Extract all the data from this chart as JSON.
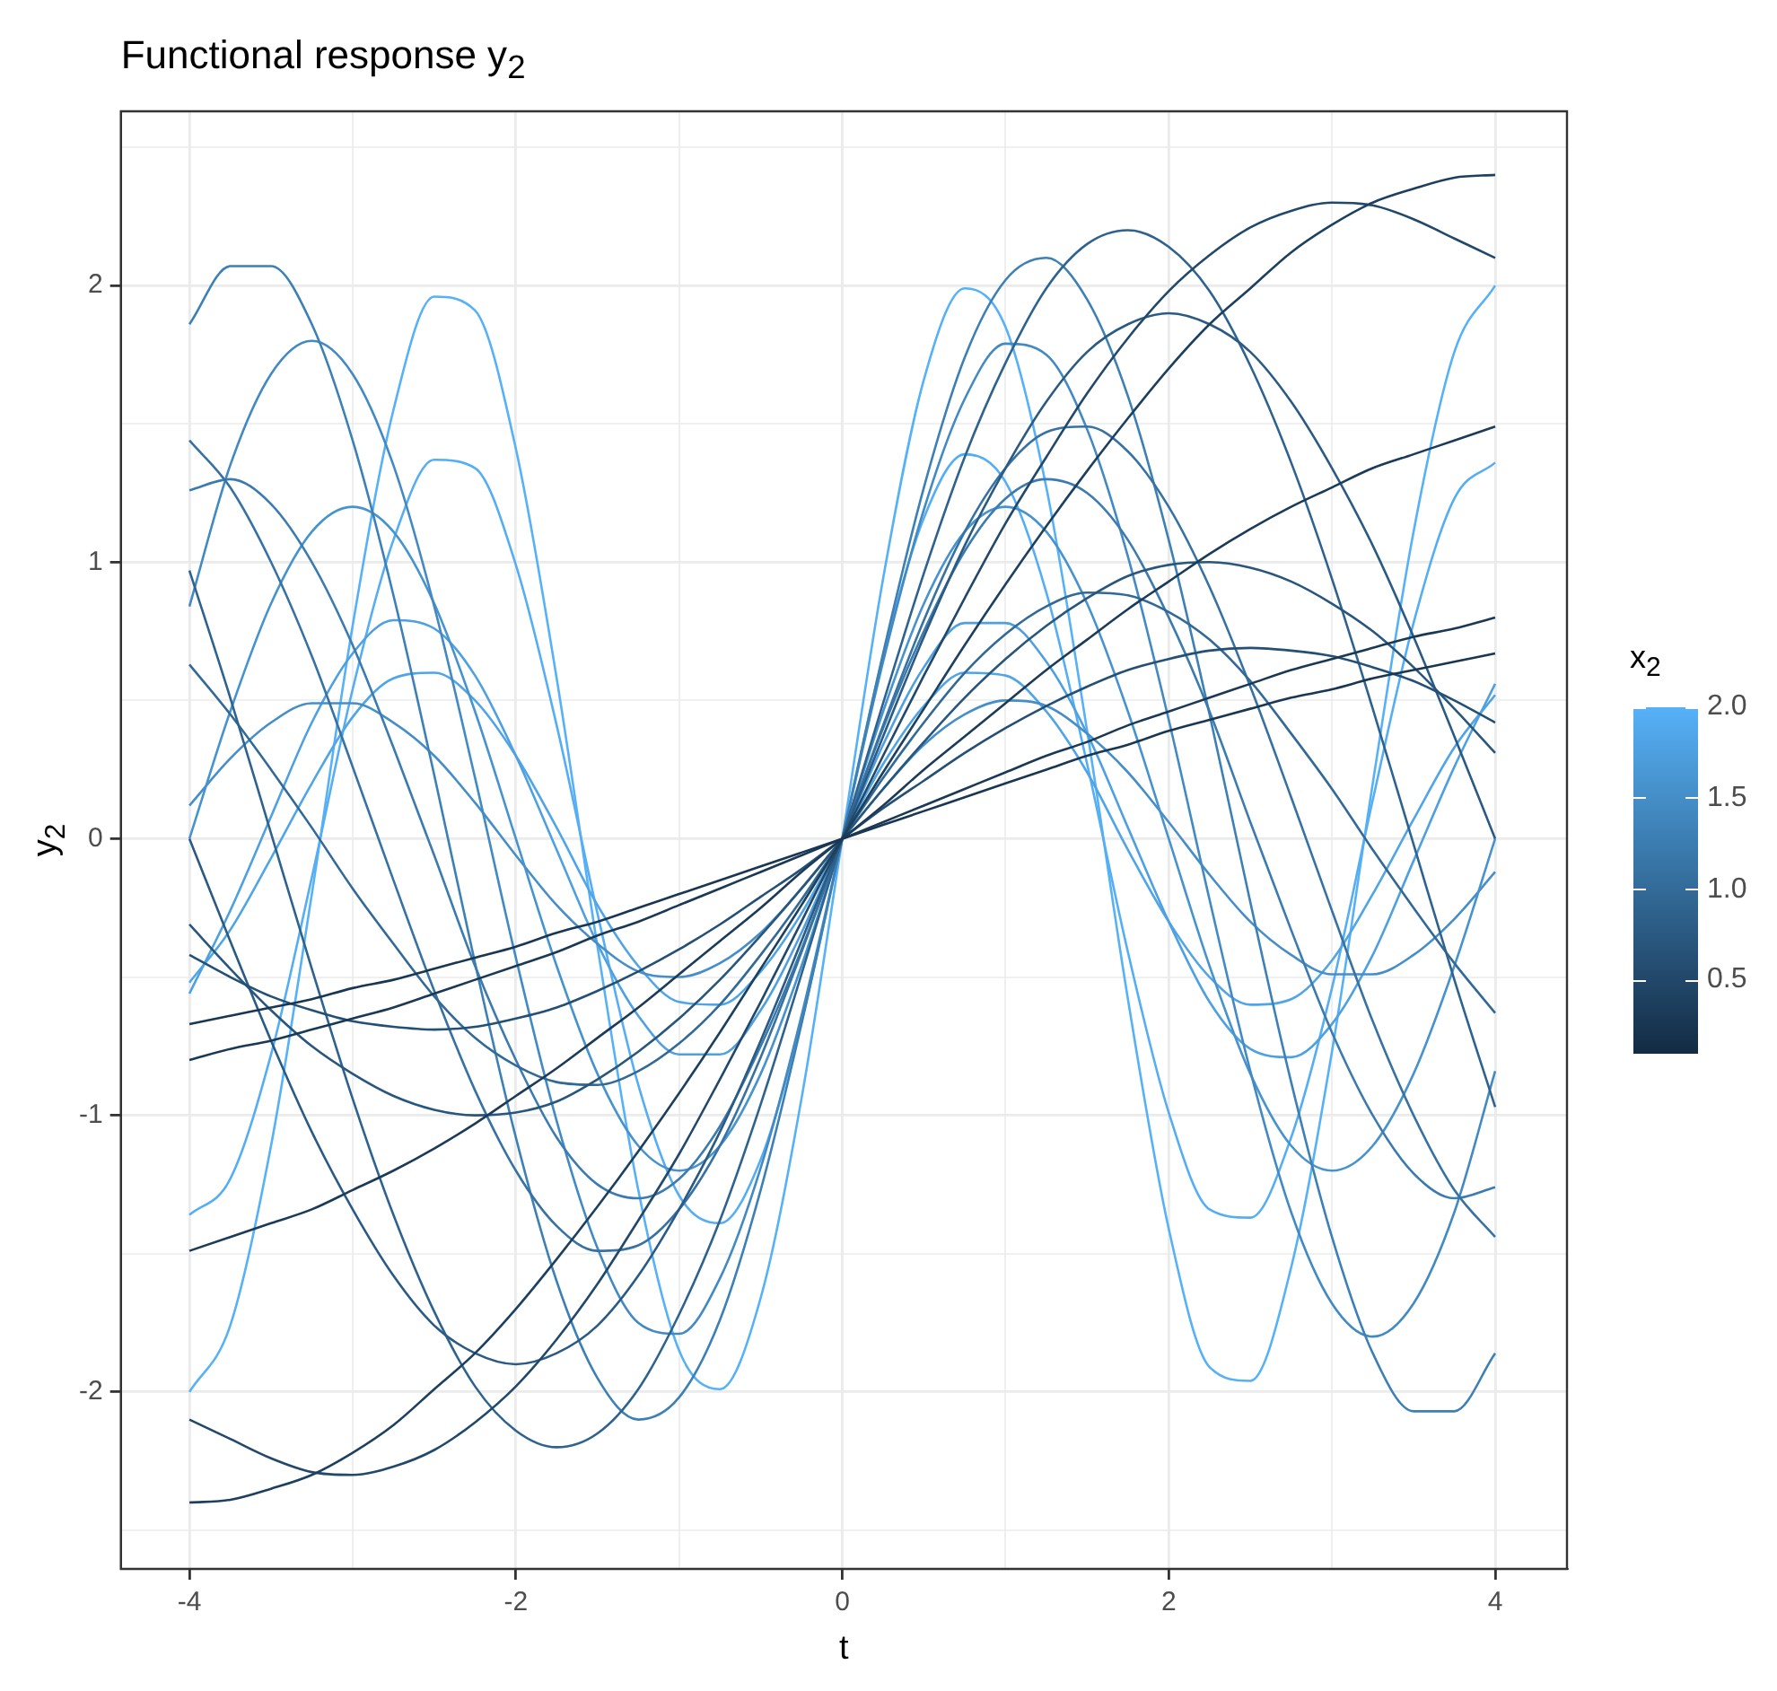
{
  "chart_data": {
    "type": "line",
    "title": "Functional response y$_{2}$",
    "xlabel": "t",
    "ylabel": "y$_{2}$",
    "clabel": "x$_{2}$",
    "clim": [
      0.1,
      2.0
    ],
    "cticks": [
      {
        "value": 0.5,
        "label": "0.5"
      },
      {
        "value": 1,
        "label": "1.0"
      },
      {
        "value": 1.5,
        "label": "1.5"
      },
      {
        "value": 2,
        "label": "2.0"
      }
    ],
    "xlim": [
      -4.42,
      4.44
    ],
    "xticks": [
      -4,
      {
        "value": -3,
        "label": null
      },
      -2,
      {
        "value": -1,
        "label": null
      },
      0,
      {
        "value": 1,
        "label": null
      },
      2,
      {
        "value": 3,
        "label": null
      },
      4
    ],
    "ylim": [
      -2.64,
      2.63
    ],
    "yticks": [
      {
        "value": -2.5,
        "label": null
      },
      -2,
      {
        "value": -1.5,
        "label": null
      },
      -1,
      {
        "value": -0.5,
        "label": null
      },
      0,
      {
        "value": 0.5,
        "label": null
      },
      1,
      {
        "value": 1.5,
        "label": null
      },
      2,
      {
        "value": 2.5,
        "label": null
      }
    ],
    "grid": true,
    "legend": false,
    "x": [
      -4,
      -3.75,
      -3.5,
      -3.25,
      -3,
      -2.75,
      -2.5,
      -2.25,
      -2,
      -1.75,
      -1.5,
      -1.25,
      -1,
      -0.75,
      -0.5,
      -0.25,
      0,
      0.25,
      0.5,
      0.75,
      1,
      1.25,
      1.5,
      1.75,
      2,
      2.25,
      2.5,
      2.75,
      3,
      3.25,
      3.5,
      3.75,
      4
    ],
    "series": [
      {
        "color": "#193753",
        "values": [
          -0.67,
          -0.64,
          -0.61,
          -0.58,
          -0.54,
          -0.51,
          -0.47,
          -0.43,
          -0.39,
          -0.34,
          -0.3,
          -0.25,
          -0.2,
          -0.15,
          -0.1,
          -0.05,
          0,
          0.05,
          0.1,
          0.15,
          0.2,
          0.25,
          0.3,
          0.34,
          0.39,
          0.43,
          0.47,
          0.51,
          0.54,
          0.58,
          0.61,
          0.64,
          0.67
        ]
      },
      {
        "color": "#1a3955",
        "values": [
          -0.8,
          -0.76,
          -0.73,
          -0.69,
          -0.65,
          -0.61,
          -0.56,
          -0.51,
          -0.46,
          -0.41,
          -0.35,
          -0.3,
          -0.24,
          -0.18,
          -0.12,
          -0.06,
          0,
          0.06,
          0.12,
          0.18,
          0.24,
          0.3,
          0.35,
          0.41,
          0.46,
          0.51,
          0.56,
          0.61,
          0.65,
          0.69,
          0.73,
          0.76,
          0.8
        ]
      },
      {
        "color": "#1b3b59",
        "values": [
          -1.49,
          -1.44,
          -1.39,
          -1.34,
          -1.27,
          -1.2,
          -1.12,
          -1.03,
          -0.93,
          -0.83,
          -0.72,
          -0.61,
          -0.49,
          -0.37,
          -0.25,
          -0.12,
          0,
          0.12,
          0.25,
          0.37,
          0.49,
          0.61,
          0.72,
          0.83,
          0.93,
          1.03,
          1.12,
          1.2,
          1.27,
          1.34,
          1.39,
          1.44,
          1.49
        ]
      },
      {
        "color": "#1d405f",
        "values": [
          -2.4,
          -2.39,
          -2.35,
          -2.3,
          -2.22,
          -2.12,
          -1.99,
          -1.86,
          -1.7,
          -1.52,
          -1.33,
          -1.13,
          -0.92,
          -0.7,
          -0.47,
          -0.24,
          0,
          0.24,
          0.47,
          0.7,
          0.92,
          1.13,
          1.33,
          1.52,
          1.7,
          1.86,
          1.99,
          2.12,
          2.22,
          2.3,
          2.35,
          2.39,
          2.4
        ]
      },
      {
        "color": "#22486a",
        "values": [
          -2.1,
          -2.17,
          -2.24,
          -2.29,
          -2.3,
          -2.27,
          -2.21,
          -2.11,
          -1.98,
          -1.81,
          -1.61,
          -1.38,
          -1.14,
          -0.87,
          -0.59,
          -0.3,
          0,
          0.3,
          0.59,
          0.87,
          1.14,
          1.38,
          1.61,
          1.81,
          1.98,
          2.11,
          2.21,
          2.27,
          2.3,
          2.29,
          2.24,
          2.17,
          2.1
        ]
      },
      {
        "color": "#255075",
        "values": [
          -0.42,
          -0.5,
          -0.57,
          -0.62,
          -0.66,
          -0.68,
          -0.69,
          -0.68,
          -0.65,
          -0.61,
          -0.55,
          -0.48,
          -0.4,
          -0.31,
          -0.21,
          -0.11,
          0,
          0.11,
          0.21,
          0.31,
          0.4,
          0.48,
          0.55,
          0.61,
          0.65,
          0.68,
          0.69,
          0.68,
          0.66,
          0.62,
          0.57,
          0.5,
          0.42
        ]
      },
      {
        "color": "#28567c",
        "values": [
          -0.31,
          -0.47,
          -0.62,
          -0.75,
          -0.85,
          -0.93,
          -0.98,
          -1.0,
          -0.99,
          -0.95,
          -0.87,
          -0.77,
          -0.65,
          -0.51,
          -0.35,
          -0.18,
          0,
          0.18,
          0.35,
          0.51,
          0.65,
          0.77,
          0.87,
          0.95,
          0.99,
          1.0,
          0.98,
          0.93,
          0.85,
          0.75,
          0.62,
          0.47,
          0.31
        ]
      },
      {
        "color": "#2b5b84",
        "values": [
          0,
          -0.37,
          -0.73,
          -1.06,
          -1.34,
          -1.58,
          -1.76,
          -1.86,
          -1.9,
          -1.86,
          -1.76,
          -1.58,
          -1.34,
          -1.06,
          -0.73,
          -0.37,
          0,
          0.37,
          0.73,
          1.06,
          1.34,
          1.58,
          1.76,
          1.86,
          1.9,
          1.86,
          1.76,
          1.58,
          1.34,
          1.06,
          0.73,
          0.37,
          0
        ]
      },
      {
        "color": "#2f638f",
        "values": [
          0.97,
          0.51,
          0.02,
          -0.47,
          -0.94,
          -1.36,
          -1.71,
          -1.98,
          -2.14,
          -2.2,
          -2.15,
          -1.99,
          -1.72,
          -1.38,
          -0.96,
          -0.49,
          0,
          0.49,
          0.96,
          1.38,
          1.72,
          1.99,
          2.15,
          2.2,
          2.14,
          1.98,
          1.71,
          1.36,
          0.94,
          0.47,
          -0.02,
          -0.51,
          -0.97
        ]
      },
      {
        "color": "#326996",
        "values": [
          0.63,
          0.45,
          0.25,
          0.04,
          -0.18,
          -0.38,
          -0.57,
          -0.72,
          -0.82,
          -0.88,
          -0.89,
          -0.84,
          -0.74,
          -0.6,
          -0.42,
          -0.22,
          0,
          0.22,
          0.42,
          0.6,
          0.74,
          0.84,
          0.89,
          0.88,
          0.82,
          0.72,
          0.57,
          0.38,
          0.18,
          -0.04,
          -0.25,
          -0.45,
          -0.63
        ]
      },
      {
        "color": "#3772a2",
        "values": [
          1.44,
          1.27,
          1.0,
          0.66,
          0.26,
          -0.15,
          -0.55,
          -0.91,
          -1.2,
          -1.4,
          -1.49,
          -1.47,
          -1.34,
          -1.11,
          -0.79,
          -0.41,
          0,
          0.41,
          0.79,
          1.11,
          1.34,
          1.47,
          1.49,
          1.4,
          1.2,
          0.91,
          0.55,
          0.15,
          -0.26,
          -0.66,
          -1.0,
          -1.27,
          -1.44
        ]
      },
      {
        "color": "#3b7baf",
        "values": [
          1.26,
          1.3,
          1.21,
          1.0,
          0.7,
          0.33,
          -0.06,
          -0.46,
          -0.8,
          -1.08,
          -1.25,
          -1.3,
          -1.23,
          -1.04,
          -0.75,
          -0.4,
          0,
          0.4,
          0.75,
          1.04,
          1.23,
          1.3,
          1.25,
          1.08,
          0.8,
          0.46,
          0.06,
          -0.33,
          -0.7,
          -1.0,
          -1.21,
          -1.3,
          -1.26
        ]
      },
      {
        "color": "#3d80b5",
        "values": [
          1.86,
          2.07,
          2.07,
          1.86,
          1.44,
          0.88,
          0.23,
          -0.45,
          -1.08,
          -1.6,
          -1.95,
          -2.1,
          -2.02,
          -1.74,
          -1.27,
          -0.67,
          0,
          0.67,
          1.27,
          1.74,
          2.02,
          2.1,
          1.95,
          1.6,
          1.08,
          0.45,
          -0.23,
          -0.88,
          -1.44,
          -1.86,
          -2.07,
          -2.07,
          -1.86
        ]
      },
      {
        "color": "#438ac3",
        "values": [
          0.84,
          1.35,
          1.68,
          1.8,
          1.68,
          1.35,
          0.84,
          0.22,
          -0.43,
          -1.02,
          -1.48,
          -1.75,
          -1.79,
          -1.59,
          -1.19,
          -0.64,
          0,
          0.64,
          1.19,
          1.59,
          1.79,
          1.75,
          1.48,
          1.02,
          0.43,
          -0.22,
          -0.84,
          -1.35,
          -1.68,
          -1.8,
          -1.68,
          -1.35,
          -0.84
        ]
      },
      {
        "color": "#4793ce",
        "values": [
          0,
          0.46,
          0.85,
          1.11,
          1.2,
          1.11,
          0.85,
          0.46,
          0,
          -0.46,
          -0.85,
          -1.11,
          -1.2,
          -1.11,
          -0.85,
          -0.46,
          0,
          0.46,
          0.85,
          1.11,
          1.2,
          1.11,
          0.85,
          0.46,
          0,
          -0.46,
          -0.85,
          -1.11,
          -1.2,
          -1.11,
          -0.85,
          -0.46,
          0
        ]
      },
      {
        "color": "#458ec9",
        "values": [
          0.12,
          0.29,
          0.42,
          0.49,
          0.49,
          0.42,
          0.3,
          0.13,
          -0.06,
          -0.24,
          -0.38,
          -0.48,
          -0.5,
          -0.45,
          -0.34,
          -0.18,
          0,
          0.18,
          0.34,
          0.45,
          0.5,
          0.48,
          0.38,
          0.24,
          0.06,
          -0.13,
          -0.3,
          -0.42,
          -0.49,
          -0.49,
          -0.42,
          -0.29,
          -0.12
        ]
      },
      {
        "color": "#4ea0e1",
        "values": [
          -0.56,
          -0.26,
          0.08,
          0.42,
          0.67,
          0.79,
          0.76,
          0.59,
          0.3,
          -0.04,
          -0.38,
          -0.64,
          -0.78,
          -0.78,
          -0.62,
          -0.34,
          0,
          0.34,
          0.62,
          0.78,
          0.78,
          0.64,
          0.38,
          0.04,
          -0.3,
          -0.59,
          -0.76,
          -0.79,
          -0.67,
          -0.42,
          -0.08,
          0.26,
          0.56
        ]
      },
      {
        "color": "#50a5e7",
        "values": [
          -0.52,
          -0.33,
          -0.07,
          0.2,
          0.44,
          0.58,
          0.6,
          0.5,
          0.3,
          0.04,
          -0.24,
          -0.46,
          -0.59,
          -0.6,
          -0.48,
          -0.27,
          0,
          0.27,
          0.48,
          0.6,
          0.59,
          0.46,
          0.24,
          -0.04,
          -0.3,
          -0.5,
          -0.6,
          -0.58,
          -0.44,
          -0.2,
          0.07,
          0.33,
          0.52
        ]
      },
      {
        "color": "#55aef3",
        "values": [
          -1.36,
          -1.23,
          -0.78,
          -0.14,
          0.54,
          1.08,
          1.37,
          1.34,
          0.99,
          0.41,
          -0.27,
          -0.89,
          -1.29,
          -1.39,
          -1.16,
          -0.66,
          0,
          0.66,
          1.16,
          1.39,
          1.29,
          0.89,
          0.27,
          -0.41,
          -0.99,
          -1.34,
          -1.37,
          -1.08,
          -0.54,
          0.14,
          0.78,
          1.23,
          1.36
        ]
      },
      {
        "color": "#56b1f7",
        "values": [
          -2.0,
          -1.76,
          -1.11,
          -0.2,
          0.77,
          1.55,
          1.96,
          1.91,
          1.41,
          0.58,
          -0.39,
          -1.27,
          -1.85,
          -1.99,
          -1.66,
          -0.94,
          0,
          0.94,
          1.66,
          1.99,
          1.85,
          1.27,
          0.39,
          -0.58,
          -1.41,
          -1.91,
          -1.96,
          -1.55,
          -0.77,
          0.2,
          1.11,
          1.76,
          2.0
        ]
      }
    ]
  }
}
